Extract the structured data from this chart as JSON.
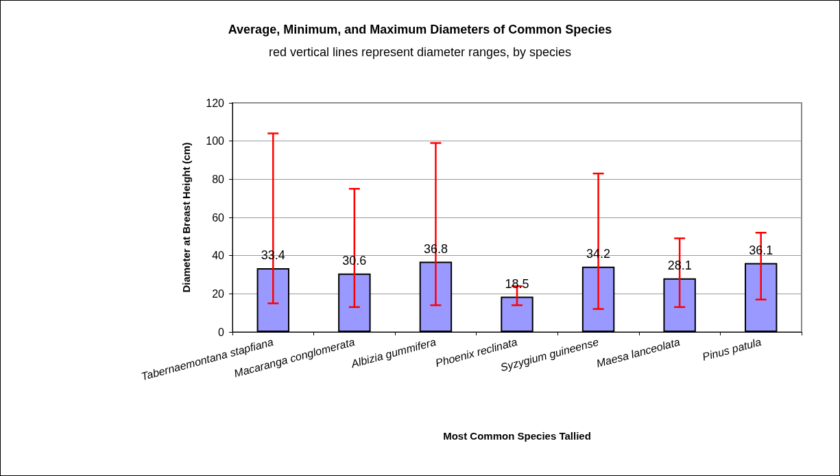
{
  "chart_data": {
    "type": "bar",
    "title": "Average, Minimum, and Maximum Diameters of Common Species",
    "subtitle": "red vertical lines represent diameter ranges, by species",
    "xlabel": "Most Common Species Tallied",
    "ylabel": "Diameter at Breast Height (cm)",
    "categories": [
      "Tabernaemontana stapfiana",
      "Macaranga conglomerata",
      "Albizia gummifera",
      "Phoenix reclinata",
      "Syzygium guineense",
      "Maesa lanceolata",
      "Pinus patula"
    ],
    "values": [
      33.4,
      30.6,
      36.8,
      18.5,
      34.2,
      28.1,
      36.1
    ],
    "errors": [
      [
        15,
        104
      ],
      [
        13,
        75
      ],
      [
        14,
        99
      ],
      [
        14,
        24
      ],
      [
        12,
        83
      ],
      [
        13,
        49
      ],
      [
        17,
        52
      ]
    ],
    "color": "#9999ff",
    "data_labels": true,
    "ylim": [
      0,
      120
    ],
    "yticks": [
      0,
      20,
      40,
      60,
      80,
      100,
      120
    ],
    "grid": "y"
  }
}
